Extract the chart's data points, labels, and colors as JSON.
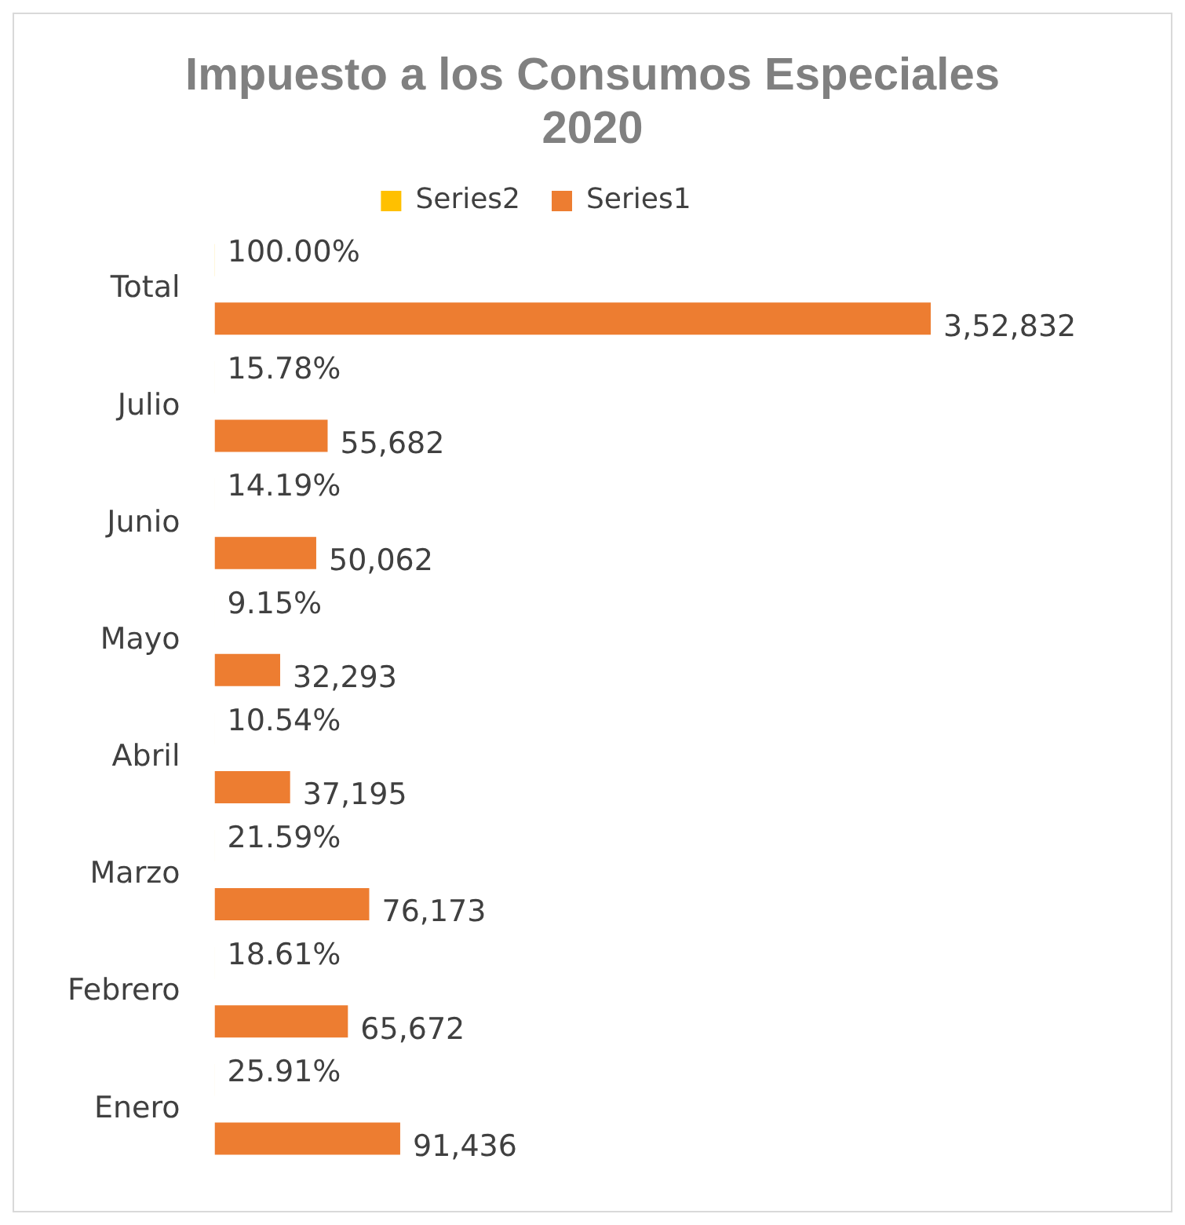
{
  "chart_data": {
    "type": "bar",
    "orientation": "horizontal",
    "title": "Impuesto a los Consumos Especiales 2020",
    "categories": [
      "Total",
      "Julio",
      "Junio",
      "Mayo",
      "Abril",
      "Marzo",
      "Febrero",
      "Enero"
    ],
    "series": [
      {
        "name": "Series2",
        "color": "#ffc000",
        "values": [
          100.0,
          15.78,
          14.19,
          9.15,
          10.54,
          21.59,
          18.61,
          25.91
        ],
        "value_labels": [
          "100.00%",
          "15.78%",
          "14.19%",
          "9.15%",
          "10.54%",
          "21.59%",
          "18.61%",
          "25.91%"
        ]
      },
      {
        "name": "Series1",
        "color": "#ed7d31",
        "values": [
          352832,
          55682,
          50062,
          32293,
          37195,
          76173,
          65672,
          91436
        ],
        "value_labels": [
          "3,52,832",
          "55,682",
          "50,062",
          "32,293",
          "37,195",
          "76,173",
          "65,672",
          "91,436"
        ]
      }
    ],
    "legend": "top",
    "tick_labels": "y",
    "grid": false
  }
}
